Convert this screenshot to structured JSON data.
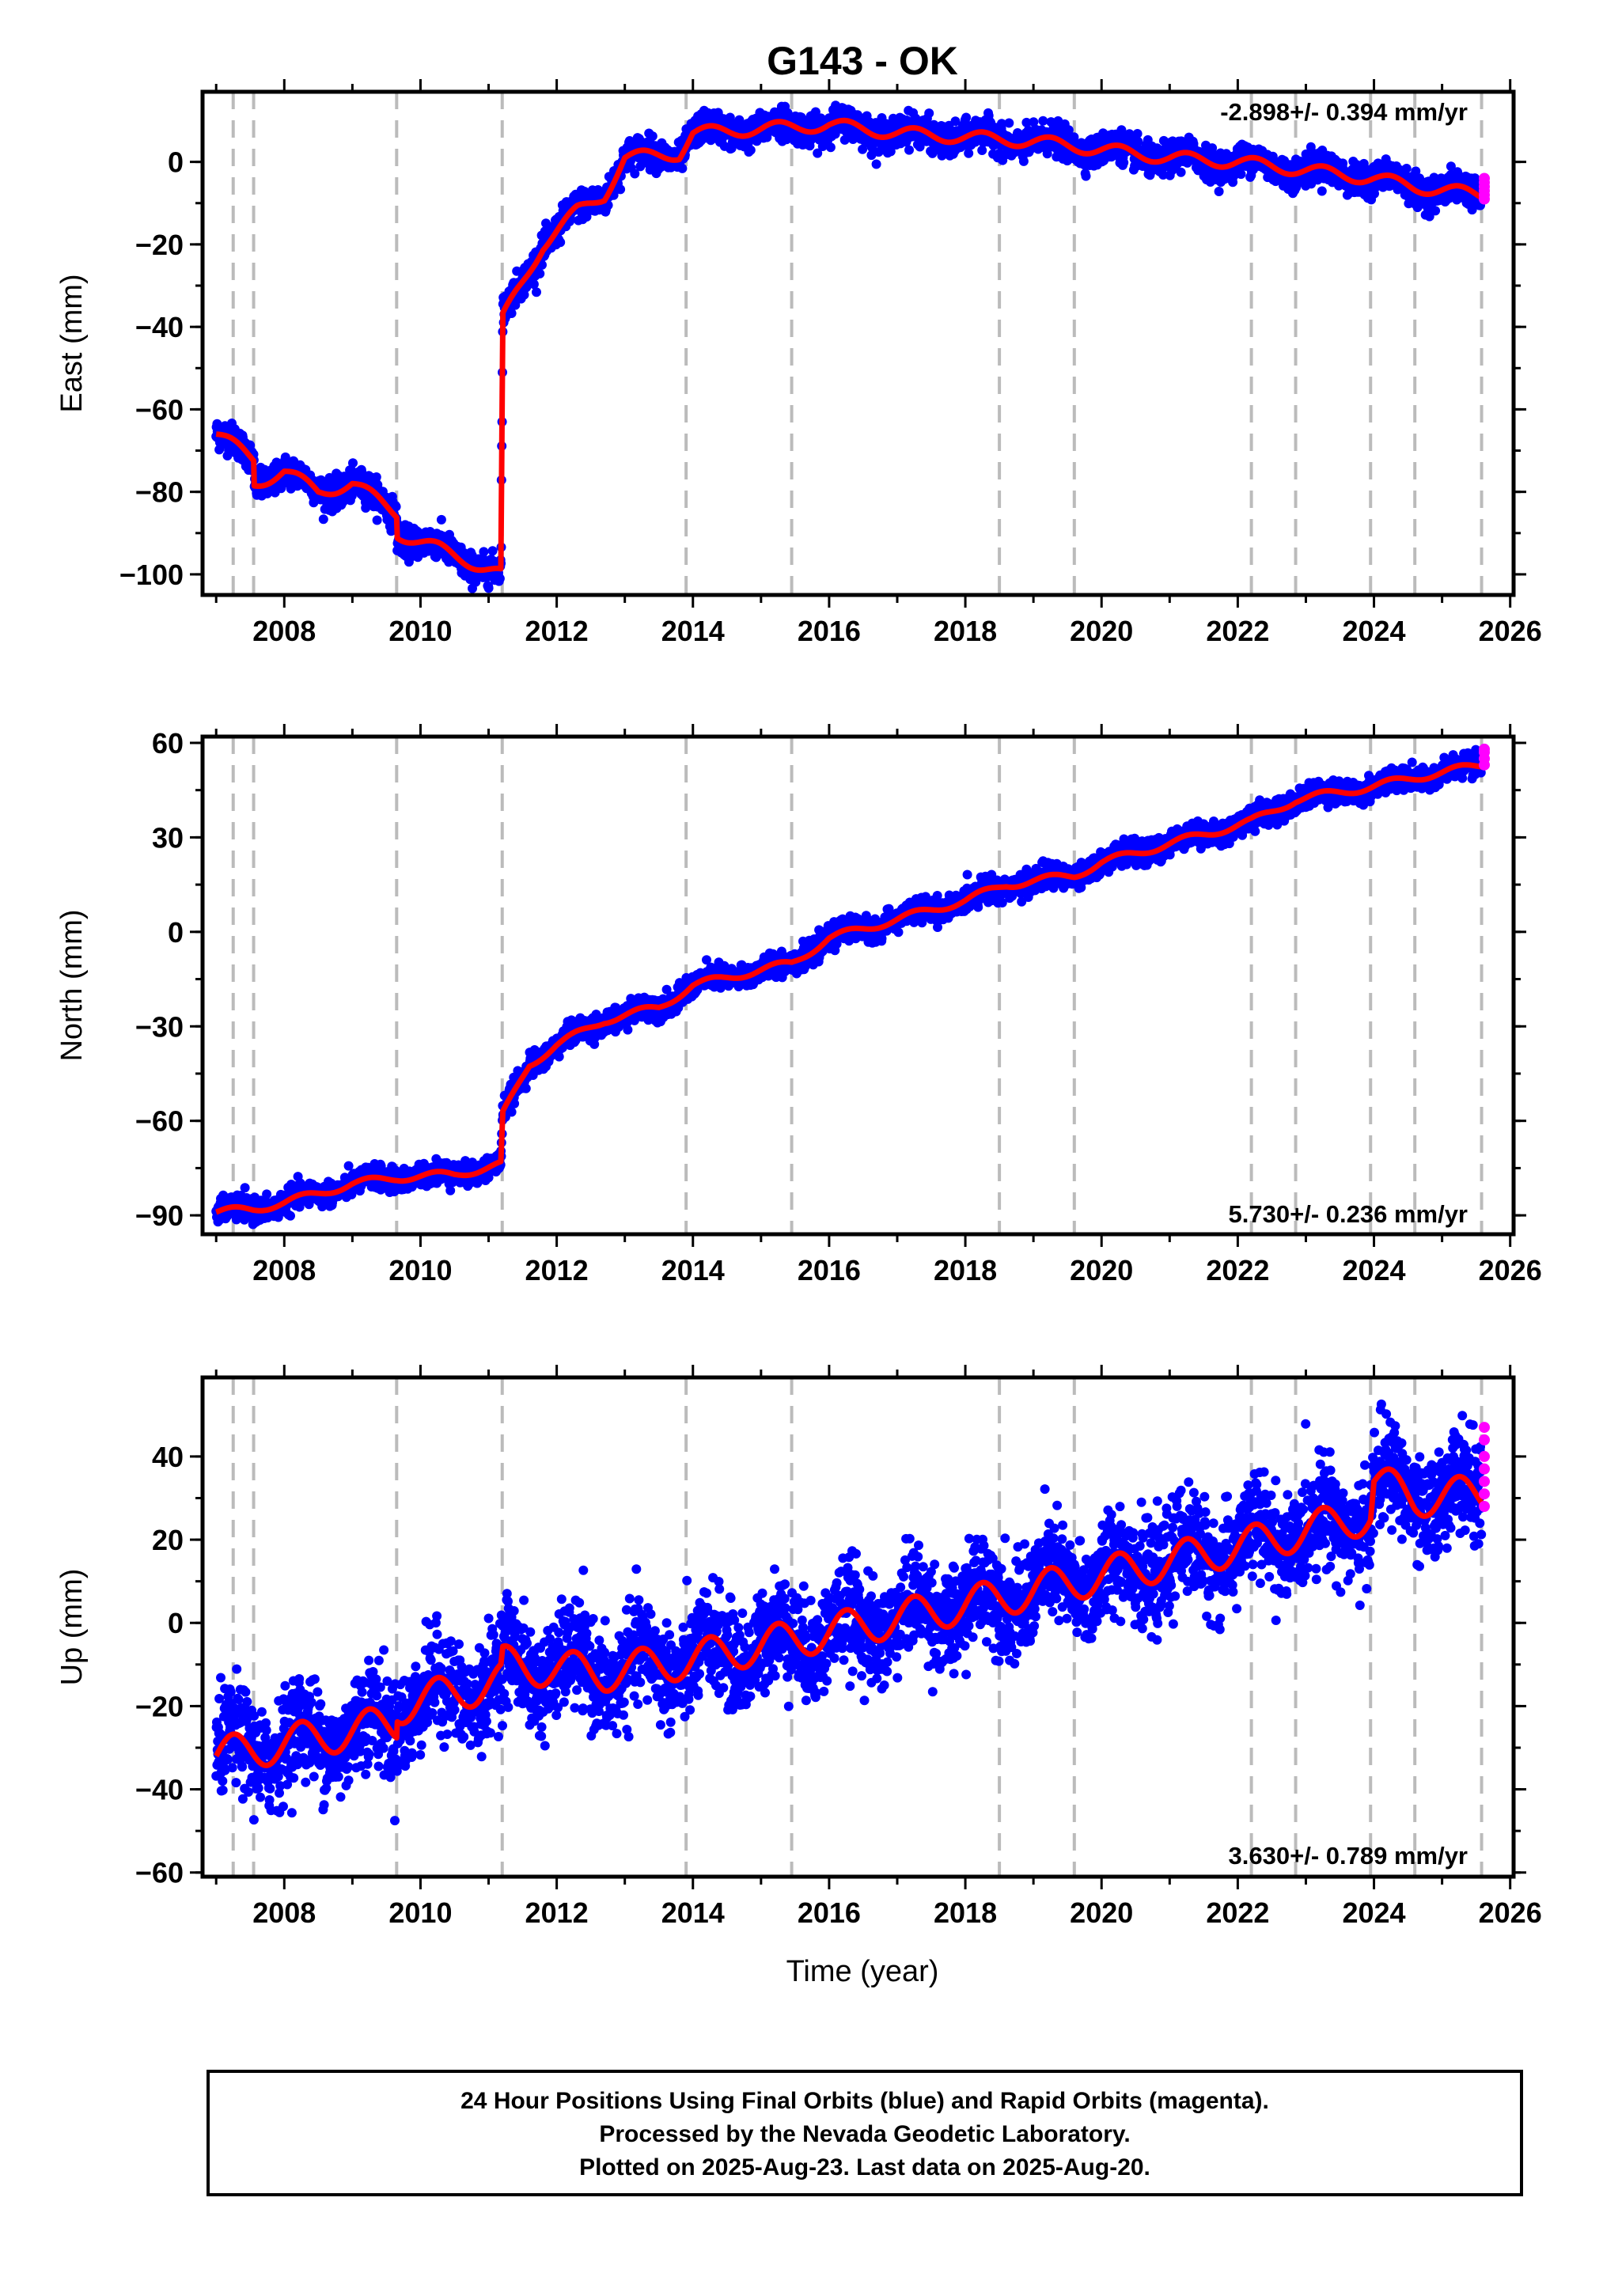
{
  "title": "G143 - OK",
  "footer": {
    "line1": "24 Hour Positions Using Final Orbits (blue) and Rapid Orbits (magenta).",
    "line2": "Processed by the Nevada Geodetic Laboratory.",
    "line3": "Plotted on 2025-Aug-23. Last data on 2025-Aug-20."
  },
  "colors": {
    "final": "#0000ff",
    "rapid": "#ff00ff",
    "model": "#ff0000",
    "event_line": "#bbbbbb"
  },
  "chart_data": [
    {
      "type": "scatter",
      "component": "east",
      "ylabel": "East (mm)",
      "xlabel": "",
      "rate": "-2.898+/- 0.394 mm/yr",
      "xlim": [
        2006.8,
        2026.05
      ],
      "ylim": [
        -105,
        17
      ],
      "xticks": [
        2008,
        2010,
        2012,
        2014,
        2016,
        2018,
        2020,
        2022,
        2024,
        2026
      ],
      "yticks": [
        0,
        -20,
        -40,
        -60,
        -80,
        -100
      ],
      "event_lines": [
        2007.25,
        2007.55,
        2009.65,
        2011.2,
        2013.9,
        2015.45,
        2018.5,
        2019.6,
        2022.2,
        2022.85,
        2023.95,
        2024.6,
        2025.58
      ],
      "model_line": [
        {
          "x": 2007.0,
          "y": -66
        },
        {
          "x": 2007.55,
          "y": -72
        },
        {
          "x": 2007.56,
          "y": -78
        },
        {
          "x": 2008.0,
          "y": -75
        },
        {
          "x": 2008.5,
          "y": -80
        },
        {
          "x": 2009.0,
          "y": -78
        },
        {
          "x": 2009.65,
          "y": -85
        },
        {
          "x": 2009.66,
          "y": -90
        },
        {
          "x": 2010.3,
          "y": -94
        },
        {
          "x": 2011.18,
          "y": -100
        },
        {
          "x": 2011.21,
          "y": -38
        },
        {
          "x": 2011.4,
          "y": -32
        },
        {
          "x": 2011.8,
          "y": -20
        },
        {
          "x": 2012.3,
          "y": -12
        },
        {
          "x": 2012.7,
          "y": -8
        },
        {
          "x": 2013.0,
          "y": 1
        },
        {
          "x": 2013.8,
          "y": 2
        },
        {
          "x": 2014.0,
          "y": 7
        },
        {
          "x": 2015.0,
          "y": 8
        },
        {
          "x": 2016.0,
          "y": 9
        },
        {
          "x": 2017.0,
          "y": 7
        },
        {
          "x": 2018.0,
          "y": 6
        },
        {
          "x": 2019.0,
          "y": 5
        },
        {
          "x": 2020.0,
          "y": 3
        },
        {
          "x": 2021.0,
          "y": 1
        },
        {
          "x": 2022.0,
          "y": 0
        },
        {
          "x": 2023.0,
          "y": -2
        },
        {
          "x": 2024.0,
          "y": -4
        },
        {
          "x": 2024.6,
          "y": -6
        },
        {
          "x": 2025.58,
          "y": -8
        }
      ],
      "noise": 1.8,
      "seasonal_amp": 1.5,
      "rapid_points": [
        {
          "x": 2025.62,
          "y": -4
        },
        {
          "x": 2025.62,
          "y": -5
        },
        {
          "x": 2025.62,
          "y": -6
        },
        {
          "x": 2025.62,
          "y": -7
        },
        {
          "x": 2025.62,
          "y": -8
        },
        {
          "x": 2025.62,
          "y": -9
        }
      ]
    },
    {
      "type": "scatter",
      "component": "north",
      "ylabel": "North (mm)",
      "xlabel": "",
      "rate": "5.730+/- 0.236 mm/yr",
      "xlim": [
        2006.8,
        2026.05
      ],
      "ylim": [
        -96,
        62
      ],
      "xticks": [
        2008,
        2010,
        2012,
        2014,
        2016,
        2018,
        2020,
        2022,
        2024,
        2026
      ],
      "yticks": [
        60,
        30,
        0,
        -30,
        -60,
        -90
      ],
      "event_lines": [
        2007.25,
        2007.55,
        2009.65,
        2011.2,
        2013.9,
        2015.45,
        2018.5,
        2019.6,
        2022.2,
        2022.85,
        2023.95,
        2024.6,
        2025.58
      ],
      "model_line": [
        {
          "x": 2007.0,
          "y": -89
        },
        {
          "x": 2007.55,
          "y": -88
        },
        {
          "x": 2008.0,
          "y": -86
        },
        {
          "x": 2009.0,
          "y": -80
        },
        {
          "x": 2009.65,
          "y": -78
        },
        {
          "x": 2010.5,
          "y": -77
        },
        {
          "x": 2011.18,
          "y": -74
        },
        {
          "x": 2011.21,
          "y": -58
        },
        {
          "x": 2011.6,
          "y": -42
        },
        {
          "x": 2012.0,
          "y": -36
        },
        {
          "x": 2012.7,
          "y": -28
        },
        {
          "x": 2013.5,
          "y": -24
        },
        {
          "x": 2014.0,
          "y": -17
        },
        {
          "x": 2014.8,
          "y": -13
        },
        {
          "x": 2015.45,
          "y": -10
        },
        {
          "x": 2016.0,
          "y": -2
        },
        {
          "x": 2017.0,
          "y": 4
        },
        {
          "x": 2018.0,
          "y": 10
        },
        {
          "x": 2018.6,
          "y": 15
        },
        {
          "x": 2019.6,
          "y": 18
        },
        {
          "x": 2020.0,
          "y": 22
        },
        {
          "x": 2021.0,
          "y": 28
        },
        {
          "x": 2022.2,
          "y": 35
        },
        {
          "x": 2022.85,
          "y": 42
        },
        {
          "x": 2023.95,
          "y": 46
        },
        {
          "x": 2024.6,
          "y": 49
        },
        {
          "x": 2025.58,
          "y": 53
        }
      ],
      "noise": 1.8,
      "seasonal_amp": 1.2,
      "rapid_points": [
        {
          "x": 2025.62,
          "y": 53
        },
        {
          "x": 2025.62,
          "y": 55
        },
        {
          "x": 2025.62,
          "y": 57
        },
        {
          "x": 2025.62,
          "y": 58
        }
      ]
    },
    {
      "type": "scatter",
      "component": "up",
      "ylabel": "Up (mm)",
      "xlabel": "Time (year)",
      "rate": "3.630+/- 0.789 mm/yr",
      "xlim": [
        2006.8,
        2026.05
      ],
      "ylim": [
        -61,
        59
      ],
      "xticks": [
        2008,
        2010,
        2012,
        2014,
        2016,
        2018,
        2020,
        2022,
        2024,
        2026
      ],
      "yticks": [
        40,
        20,
        0,
        -20,
        -40,
        -60
      ],
      "event_lines": [
        2007.25,
        2007.55,
        2009.65,
        2011.2,
        2013.9,
        2015.45,
        2018.5,
        2019.6,
        2022.2,
        2022.85,
        2023.95,
        2024.6,
        2025.58
      ],
      "model_line": [
        {
          "x": 2007.0,
          "y": -32
        },
        {
          "x": 2009.65,
          "y": -24
        },
        {
          "x": 2009.66,
          "y": -20
        },
        {
          "x": 2011.18,
          "y": -14
        },
        {
          "x": 2011.21,
          "y": -10
        },
        {
          "x": 2012.7,
          "y": -12
        },
        {
          "x": 2013.9,
          "y": -9
        },
        {
          "x": 2015.45,
          "y": -4
        },
        {
          "x": 2018.5,
          "y": 6
        },
        {
          "x": 2019.6,
          "y": 10
        },
        {
          "x": 2022.2,
          "y": 19
        },
        {
          "x": 2023.95,
          "y": 26
        },
        {
          "x": 2024.0,
          "y": 34
        },
        {
          "x": 2024.6,
          "y": 30
        },
        {
          "x": 2025.58,
          "y": 31
        }
      ],
      "noise": 6.0,
      "seasonal_amp": 4.5,
      "rapid_points": [
        {
          "x": 2025.62,
          "y": 28
        },
        {
          "x": 2025.62,
          "y": 31
        },
        {
          "x": 2025.62,
          "y": 34
        },
        {
          "x": 2025.62,
          "y": 37
        },
        {
          "x": 2025.62,
          "y": 40
        },
        {
          "x": 2025.62,
          "y": 44
        },
        {
          "x": 2025.62,
          "y": 47
        }
      ]
    }
  ]
}
